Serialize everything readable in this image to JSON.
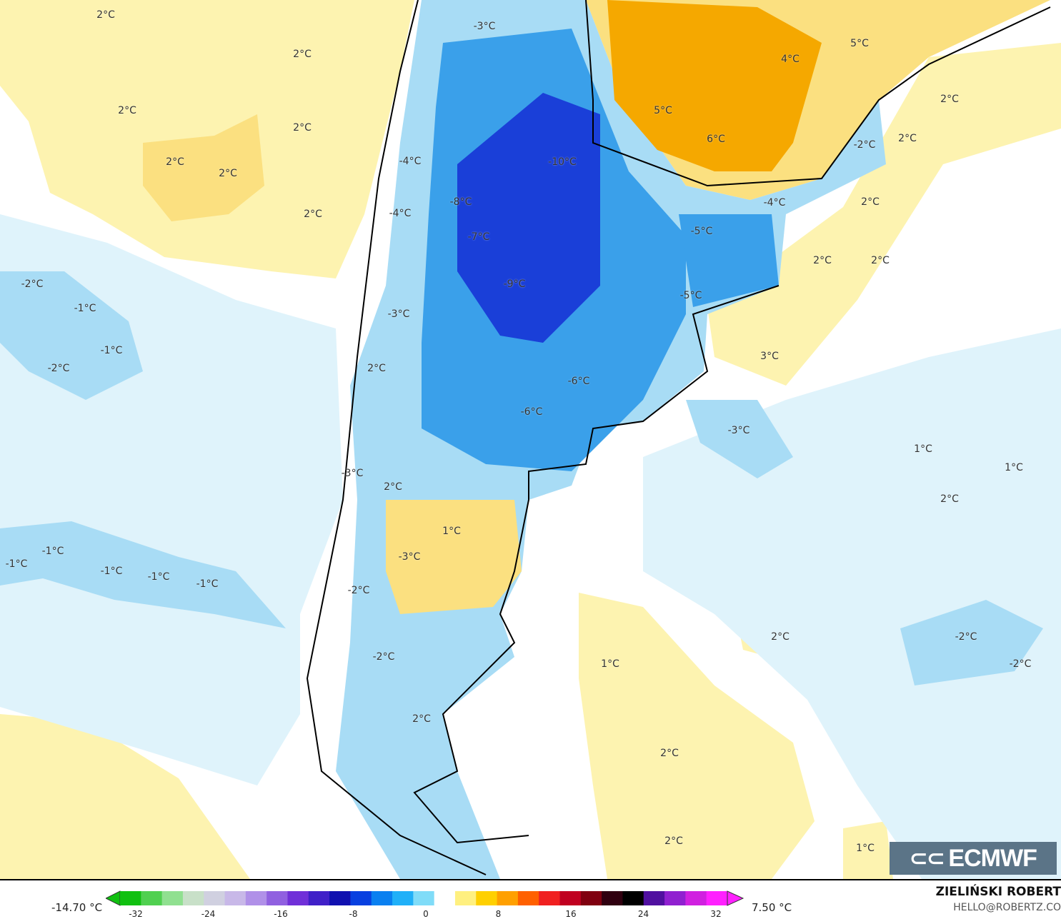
{
  "map": {
    "labels": [
      "2°C",
      "2°C",
      "2°C",
      "2°C",
      "2°C",
      "2°C",
      "2°C",
      "-3°C",
      "5°C",
      "4°C",
      "2°C",
      "5°C",
      "6°C",
      "2°C",
      "-2°C",
      "-10°C",
      "-4°C",
      "-8°C",
      "-4°C",
      "2°C",
      "-4°C",
      "-7°C",
      "-5°C",
      "2°C",
      "2°C",
      "-2°C",
      "-9°C",
      "-5°C",
      "-1°C",
      "-3°C",
      "-1°C",
      "3°C",
      "-2°C",
      "2°C",
      "-6°C",
      "-6°C",
      "-3°C",
      "1°C",
      "1°C",
      "-3°C",
      "2°C",
      "2°C",
      "1°C",
      "-1°C",
      "-3°C",
      "-1°C",
      "-1°C",
      "-1°C",
      "-1°C",
      "-2°C",
      "2°C",
      "-2°C",
      "-2°C",
      "1°C",
      "-2°C",
      "2°C",
      "2°C",
      "2°C",
      "1°C"
    ],
    "colors": {
      "warm_pale": "#fdf3b0",
      "warm": "#fbe080",
      "orange": "#f5a800",
      "cold_pale": "#dff3fb",
      "cold": "#a8dcf5",
      "cold_mid": "#3aa0ea",
      "cold_deep": "#1a3fd8"
    }
  },
  "logo": {
    "text": "ECMWF"
  },
  "legend": {
    "min_label": "-14.70 °C",
    "max_label": "7.50 °C",
    "ticks": [
      "-32",
      "-24",
      "-16",
      "-8",
      "0",
      "8",
      "16",
      "24",
      "32"
    ],
    "colors": [
      "#10c010",
      "#50d050",
      "#90e090",
      "#c8e0c8",
      "#d0d0e0",
      "#c8b8e8",
      "#b090e8",
      "#9060e0",
      "#7030d8",
      "#4020c8",
      "#1010b0",
      "#0840e0",
      "#0a80f0",
      "#20b0f8",
      "#80dcf8",
      "#ffffff",
      "#fff080",
      "#ffd000",
      "#ffa000",
      "#ff6000",
      "#f02020",
      "#c00020",
      "#800010",
      "#300010",
      "#000000",
      "#5010a0",
      "#9020d0",
      "#d020e0",
      "#ff20ff"
    ]
  },
  "credit": {
    "author": "ZIELIŃSKI ROBERT",
    "email": "HELLO@ROBERTZ.CO"
  }
}
